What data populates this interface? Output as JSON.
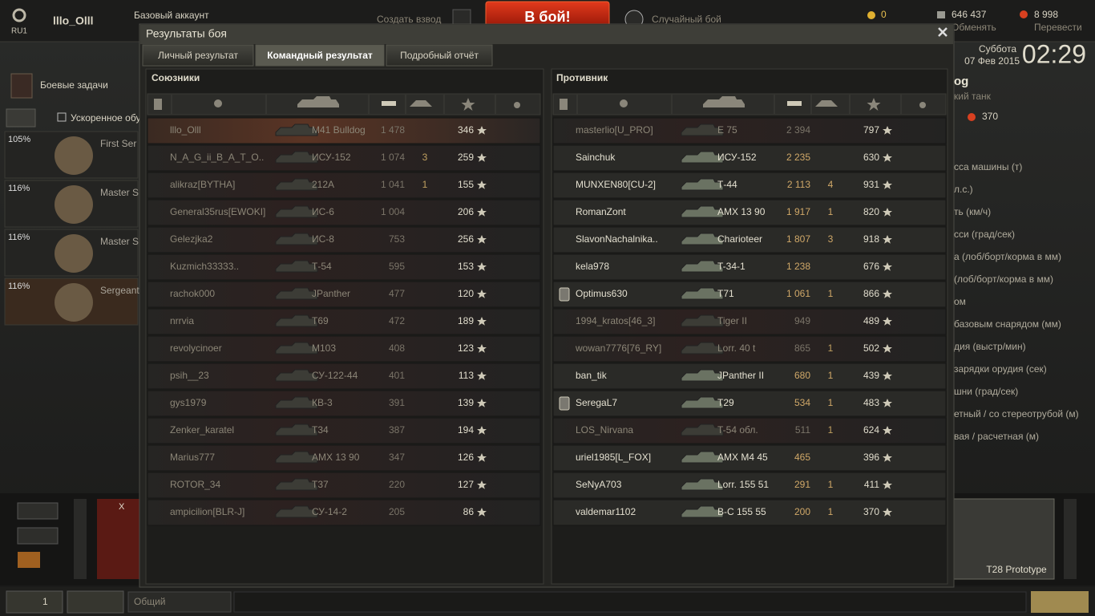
{
  "header": {
    "server": "RU1",
    "player": "lllo_Olll",
    "account": "Базовый аккаунт",
    "create_platoon": "Создать взвод",
    "battle_button": "В бой!",
    "battle_mode": "Случайный бой",
    "gold": "0",
    "credits": "646 437",
    "exchange": "Обменять",
    "free_xp": "8 998",
    "transfer": "Перевести"
  },
  "clock": {
    "day": "Суббота",
    "date": "07 Фев 2015",
    "time": "02:29"
  },
  "left_panel": {
    "missions": "Боевые задачи",
    "accelerated": "Ускоренное обу",
    "crew": [
      {
        "percent": "105%",
        "name": "First Ser"
      },
      {
        "percent": "116%",
        "name": "Master S"
      },
      {
        "percent": "116%",
        "name": "Master S"
      },
      {
        "percent": "116%",
        "name": "Sergeant"
      }
    ]
  },
  "right_panel": {
    "tank_name": "og",
    "tank_class": "кий танк",
    "price": "370",
    "specs": [
      "сса машины (т)",
      "л.с.)",
      "ть (км/ч)",
      "сси (град/сек)",
      "а (лоб/борт/корма в мм)",
      "(лоб/борт/корма в мм)",
      "ом",
      "базовым снарядом (мм)",
      "дия (выстр/мин)",
      "зарядки орудия (сек)",
      "шни (град/сек)",
      "етный / со стереотрубой (м)",
      "вая / расчетная (м)"
    ]
  },
  "carousel": {
    "tier": "X",
    "selected_tank": "T28 Prototype"
  },
  "footer": {
    "players_online": "1",
    "chat_channel": "Общий"
  },
  "window": {
    "title": "Результаты боя",
    "tabs": [
      "Личный результат",
      "Командный результат",
      "Подробный отчёт"
    ],
    "active_tab": 1
  },
  "allies": {
    "title": "Союзники",
    "player_row": 0,
    "rows": [
      {
        "name": "lllo_Olll",
        "tank": "M41 Bulldog",
        "damage": "1 478",
        "kills": null,
        "xp": "346",
        "alive": false,
        "platoon": false
      },
      {
        "name": "N_A_G_ii_B_A_T_O..",
        "tank": "ИСУ-152",
        "damage": "1 074",
        "kills": "3",
        "xp": "259",
        "alive": false,
        "platoon": false
      },
      {
        "name": "alikraz[BYTHA]",
        "tank": "212А",
        "damage": "1 041",
        "kills": "1",
        "xp": "155",
        "alive": false,
        "platoon": false
      },
      {
        "name": "General35rus[EWOKI]",
        "tank": "ИС-6",
        "damage": "1 004",
        "kills": null,
        "xp": "206",
        "alive": false,
        "platoon": false
      },
      {
        "name": "Gelezjka2",
        "tank": "ИС-8",
        "damage": "753",
        "kills": null,
        "xp": "256",
        "alive": false,
        "platoon": false
      },
      {
        "name": "Kuzmich33333..",
        "tank": "Т-54",
        "damage": "595",
        "kills": null,
        "xp": "153",
        "alive": false,
        "platoon": false
      },
      {
        "name": "rachok000",
        "tank": "JPanther",
        "damage": "477",
        "kills": null,
        "xp": "120",
        "alive": false,
        "platoon": false
      },
      {
        "name": "nrrvia",
        "tank": "T69",
        "damage": "472",
        "kills": null,
        "xp": "189",
        "alive": false,
        "platoon": false
      },
      {
        "name": "revolycinoer",
        "tank": "M103",
        "damage": "408",
        "kills": null,
        "xp": "123",
        "alive": false,
        "platoon": false
      },
      {
        "name": "psih__23",
        "tank": "СУ-122-44",
        "damage": "401",
        "kills": null,
        "xp": "113",
        "alive": false,
        "platoon": false
      },
      {
        "name": "gys1979",
        "tank": "КВ-3",
        "damage": "391",
        "kills": null,
        "xp": "139",
        "alive": false,
        "platoon": false
      },
      {
        "name": "Zenker_karatel",
        "tank": "T34",
        "damage": "387",
        "kills": null,
        "xp": "194",
        "alive": false,
        "platoon": false
      },
      {
        "name": "Marius777",
        "tank": "AMX 13 90",
        "damage": "347",
        "kills": null,
        "xp": "126",
        "alive": false,
        "platoon": false
      },
      {
        "name": "ROTOR_34",
        "tank": "T37",
        "damage": "220",
        "kills": null,
        "xp": "127",
        "alive": false,
        "platoon": false
      },
      {
        "name": "ampicilion[BLR-J]",
        "tank": "СУ-14-2",
        "damage": "205",
        "kills": null,
        "xp": "86",
        "alive": false,
        "platoon": false
      }
    ]
  },
  "enemies": {
    "title": "Противник",
    "rows": [
      {
        "name": "masterlio[U_PRO]",
        "tank": "E 75",
        "damage": "2 394",
        "kills": null,
        "xp": "797",
        "alive": false,
        "platoon": false
      },
      {
        "name": "Sainchuk",
        "tank": "ИСУ-152",
        "damage": "2 235",
        "kills": null,
        "xp": "630",
        "alive": true,
        "platoon": false
      },
      {
        "name": "MUNXEN80[CU-2]",
        "tank": "Т-44",
        "damage": "2 113",
        "kills": "4",
        "xp": "931",
        "alive": true,
        "platoon": false
      },
      {
        "name": "RomanZont",
        "tank": "AMX 13 90",
        "damage": "1 917",
        "kills": "1",
        "xp": "820",
        "alive": true,
        "platoon": false
      },
      {
        "name": "SlavonNachalnika..",
        "tank": "Charioteer",
        "damage": "1 807",
        "kills": "3",
        "xp": "918",
        "alive": true,
        "platoon": false
      },
      {
        "name": "kela978",
        "tank": "T-34-1",
        "damage": "1 238",
        "kills": null,
        "xp": "676",
        "alive": true,
        "platoon": false
      },
      {
        "name": "Optimus630",
        "tank": "T71",
        "damage": "1 061",
        "kills": "1",
        "xp": "866",
        "alive": true,
        "platoon": true
      },
      {
        "name": "1994_kratos[46_3]",
        "tank": "Tiger II",
        "damage": "949",
        "kills": null,
        "xp": "489",
        "alive": false,
        "platoon": false
      },
      {
        "name": "wowan7776[76_RY]",
        "tank": "Lorr. 40 t",
        "damage": "865",
        "kills": "1",
        "xp": "502",
        "alive": false,
        "platoon": false
      },
      {
        "name": "ban_tik",
        "tank": "JPanther II",
        "damage": "680",
        "kills": "1",
        "xp": "439",
        "alive": true,
        "platoon": false
      },
      {
        "name": "SeregaL7",
        "tank": "T29",
        "damage": "534",
        "kills": "1",
        "xp": "483",
        "alive": true,
        "platoon": true
      },
      {
        "name": "LOS_Nirvana",
        "tank": "T-54 обл.",
        "damage": "511",
        "kills": "1",
        "xp": "624",
        "alive": false,
        "platoon": false
      },
      {
        "name": "uriel1985[L_FOX]",
        "tank": "AMX M4 45",
        "damage": "465",
        "kills": null,
        "xp": "396",
        "alive": true,
        "platoon": false
      },
      {
        "name": "SeNyA703",
        "tank": "Lorr. 155 51",
        "damage": "291",
        "kills": "1",
        "xp": "411",
        "alive": true,
        "platoon": false
      },
      {
        "name": "valdemar1102",
        "tank": "B-C 155 55",
        "damage": "200",
        "kills": "1",
        "xp": "370",
        "alive": true,
        "platoon": false
      }
    ]
  }
}
